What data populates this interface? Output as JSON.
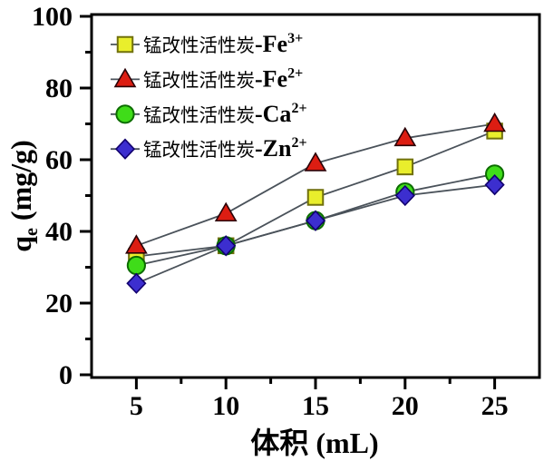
{
  "figure": {
    "background": "#ffffff",
    "frame_color": "#000000",
    "connector_line_color": "#4a525a",
    "text_color": "#000000"
  },
  "chart_data": {
    "type": "line",
    "title": "",
    "xlabel": "体积 (mL)",
    "xlabel_parts": {
      "cjk": "体积",
      "unit": " (mL)"
    },
    "ylabel": "qe (mg/g)",
    "ylabel_parts": {
      "base": "q",
      "sub": "e",
      "unit": " (mg/g)"
    },
    "x": [
      5,
      10,
      15,
      20,
      25
    ],
    "x_ticks": [
      "5",
      "10",
      "15",
      "20",
      "25"
    ],
    "x_minor_ticks": [
      7.5,
      12.5,
      17.5,
      22.5
    ],
    "y_ticks": [
      "0",
      "20",
      "40",
      "60",
      "80",
      "100"
    ],
    "y_tick_values": [
      0,
      20,
      40,
      60,
      80,
      100
    ],
    "y_minor_ticks": [
      10,
      30,
      50,
      70,
      90
    ],
    "xlim": [
      2.5,
      27.5
    ],
    "ylim": [
      0,
      100
    ],
    "grid": false,
    "legend_position": "upper-left-inside",
    "series": [
      {
        "id": "fe3",
        "label_prefix": "锰改性活性炭",
        "label_symbol": "-Fe",
        "label_charge": "3+",
        "marker": "square",
        "fill": "#e9ee2c",
        "stroke": "#71710c",
        "values": [
          33,
          36,
          49.5,
          58,
          68
        ]
      },
      {
        "id": "fe2",
        "label_prefix": "锰改性活性炭",
        "label_symbol": "-Fe",
        "label_charge": "2+",
        "marker": "triangle",
        "fill": "#dc1d12",
        "stroke": "#2a0006",
        "values": [
          36,
          45,
          59,
          66,
          70
        ]
      },
      {
        "id": "ca2",
        "label_prefix": "锰改性活性炭",
        "label_symbol": "-Ca",
        "label_charge": "2+",
        "marker": "circle",
        "fill": "#3fdc19",
        "stroke": "#0c6c00",
        "values": [
          30.5,
          36,
          43,
          51,
          56
        ]
      },
      {
        "id": "zn2",
        "label_prefix": "锰改性活性炭",
        "label_symbol": "-Zn",
        "label_charge": "2+",
        "marker": "diamond",
        "fill": "#3c2ecf",
        "stroke": "#11006e",
        "values": [
          25.5,
          36,
          43,
          50,
          53
        ]
      }
    ]
  }
}
